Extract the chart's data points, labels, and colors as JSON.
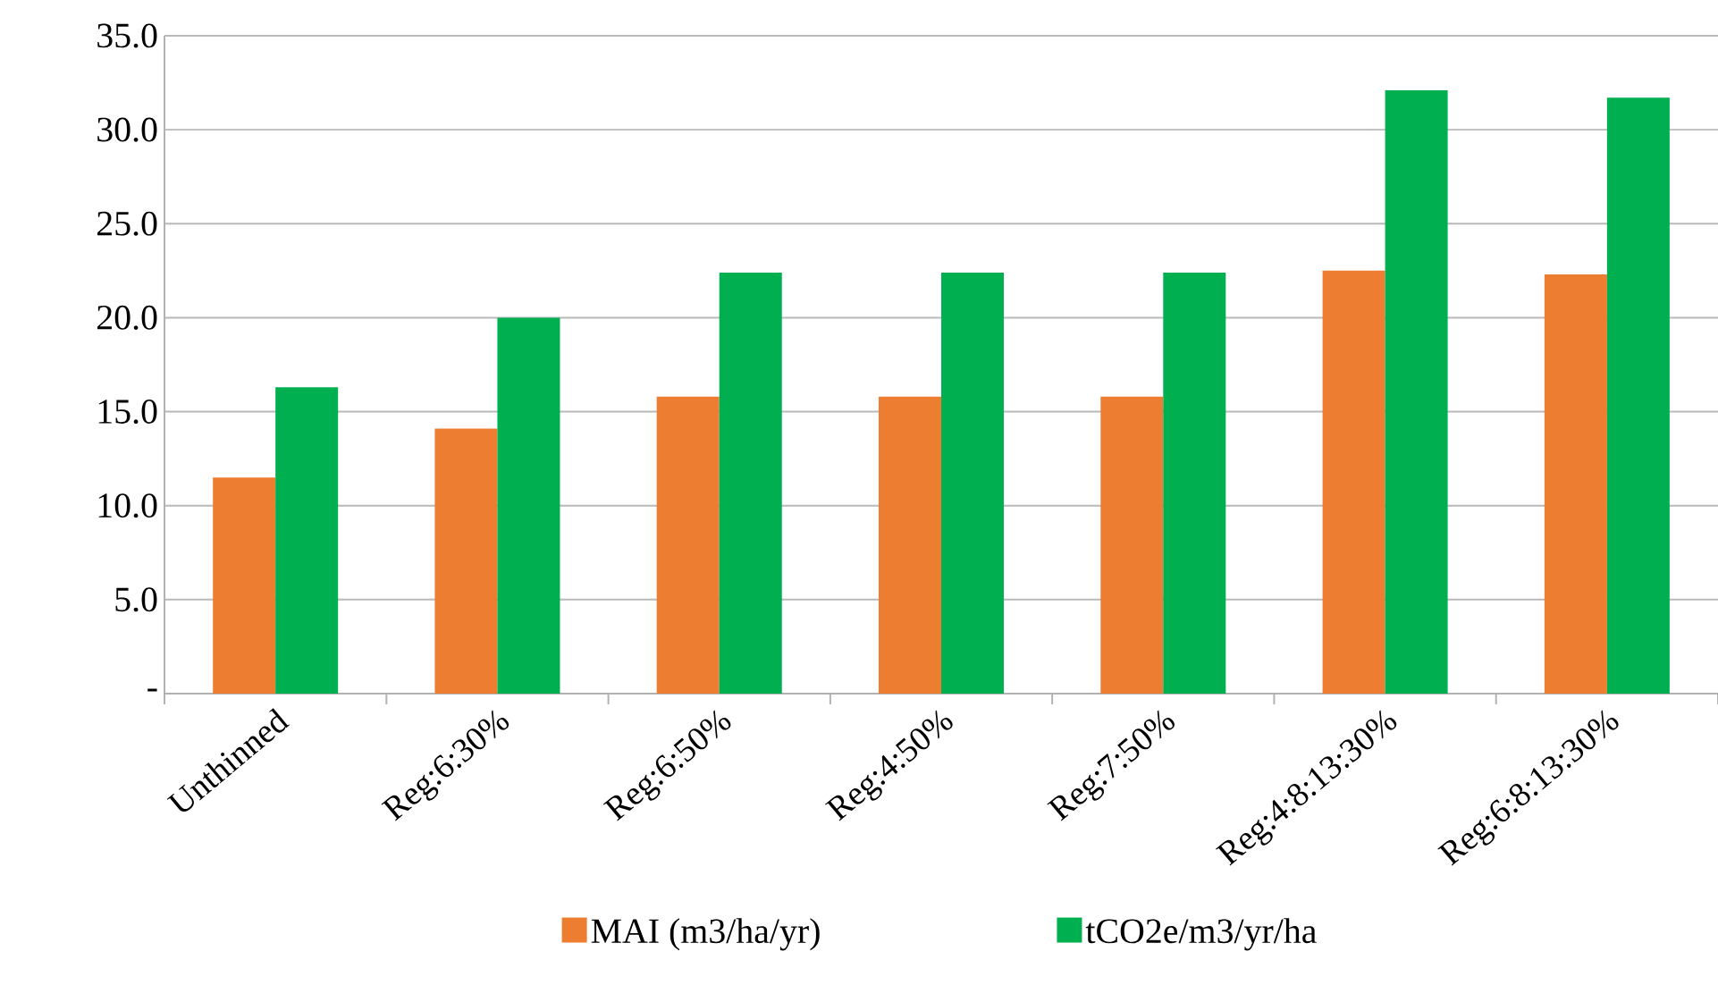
{
  "chart_data": {
    "type": "bar",
    "categories": [
      "Unthinned",
      "Reg:6:30%",
      "Reg:6:50%",
      "Reg:4:50%",
      "Reg:7:50%",
      "Reg:4:8:13:30%",
      "Reg:6:8:13:30%"
    ],
    "series": [
      {
        "name": "MAI (m3/ha/yr)",
        "color": "#ed7d31",
        "values": [
          11.5,
          14.1,
          15.8,
          15.8,
          15.8,
          22.5,
          22.3
        ]
      },
      {
        "name": "tCO2e/m3/yr/ha",
        "color": "#00b050",
        "values": [
          16.3,
          20.0,
          22.4,
          22.4,
          22.4,
          32.1,
          31.7
        ]
      }
    ],
    "ylim": [
      0,
      35
    ],
    "yticks": [
      {
        "value": 0,
        "label": "-"
      },
      {
        "value": 5,
        "label": "5.0"
      },
      {
        "value": 10,
        "label": "10.0"
      },
      {
        "value": 15,
        "label": "15.0"
      },
      {
        "value": 20,
        "label": "20.0"
      },
      {
        "value": 25,
        "label": "25.0"
      },
      {
        "value": 30,
        "label": "30.0"
      },
      {
        "value": 35,
        "label": "35.0"
      }
    ],
    "grid": "y",
    "legend": "bottom"
  }
}
